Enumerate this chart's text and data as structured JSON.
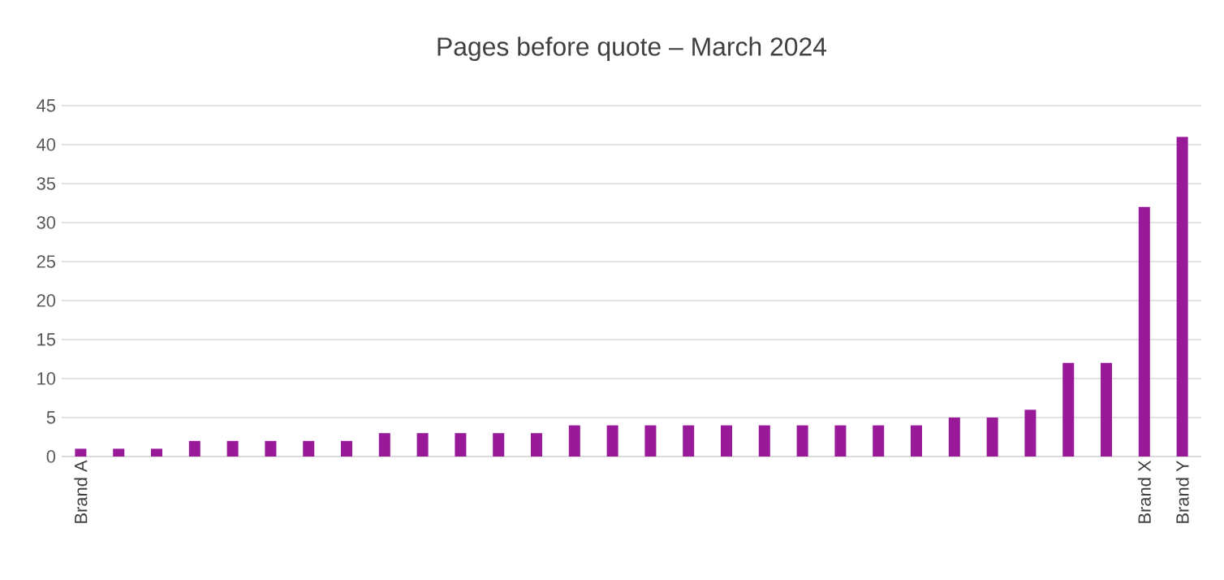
{
  "chart_data": {
    "type": "bar",
    "title": "Pages before quote – March 2024",
    "categories": [
      "Brand A",
      null,
      null,
      null,
      null,
      null,
      null,
      null,
      null,
      null,
      null,
      null,
      null,
      null,
      null,
      null,
      null,
      null,
      null,
      null,
      null,
      null,
      null,
      null,
      null,
      null,
      null,
      null,
      "Brand X",
      "Brand Y"
    ],
    "values": [
      1,
      1,
      1,
      2,
      2,
      2,
      2,
      2,
      3,
      3,
      3,
      3,
      3,
      4,
      4,
      4,
      4,
      4,
      4,
      4,
      4,
      4,
      4,
      5,
      5,
      6,
      12,
      12,
      32,
      41
    ],
    "color": "#991a99",
    "ylim": [
      0,
      45
    ],
    "yticks": [
      0,
      5,
      10,
      15,
      20,
      25,
      30,
      35,
      40,
      45
    ],
    "grid": "y"
  }
}
